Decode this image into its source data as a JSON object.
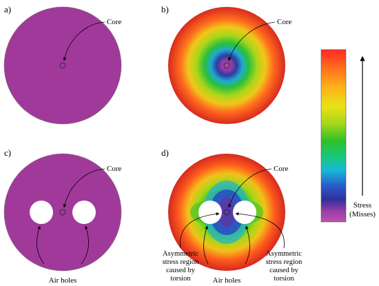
{
  "colors": {
    "base_magenta": "#a1399a",
    "air_hole": "#ffffff",
    "outline": "#000000"
  },
  "colorbar": {
    "stops": [
      "#ff2a22",
      "#ff6a1e",
      "#ffb21a",
      "#e8e214",
      "#a6d61a",
      "#2fbf2b",
      "#19c77a",
      "#16b9d8",
      "#2a5cc9",
      "#2f2f9a",
      "#9c3fa6",
      "#c04fb2"
    ],
    "label_line1": "Stress",
    "label_line2": "(Misses)"
  },
  "panels": [
    {
      "id": "a",
      "label": "a)",
      "core_label": "Core"
    },
    {
      "id": "b",
      "label": "b)",
      "core_label": "Core"
    },
    {
      "id": "c",
      "label": "c)",
      "core_label": "Core",
      "holes_label": "Air holes"
    },
    {
      "id": "d",
      "label": "d)",
      "core_label": "Core",
      "holes_label": "Air holes",
      "region_label": [
        "Asymmetric",
        "stress region",
        "caused by",
        "torsion"
      ]
    }
  ]
}
